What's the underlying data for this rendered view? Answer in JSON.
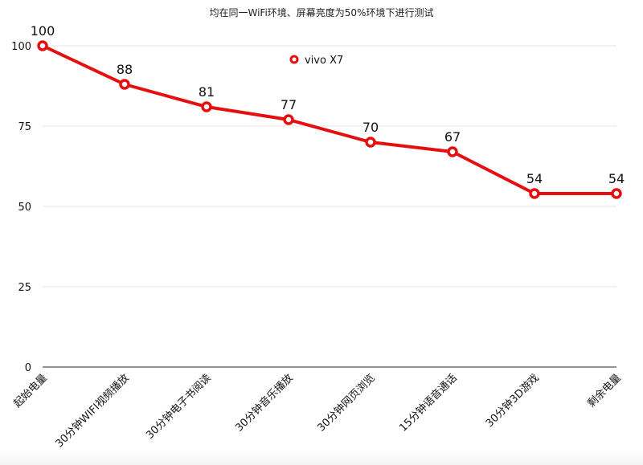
{
  "chart_data": {
    "type": "line",
    "title": "均在同一WiFi环境、屏幕亮度为50%环境下进行测试",
    "xlabel": "",
    "ylabel": "",
    "ylim": [
      0,
      100
    ],
    "yticks": [
      0,
      25,
      50,
      75,
      100
    ],
    "grid": true,
    "legend_position": "top-center",
    "categories": [
      "起始电量",
      "30分钟WIFI视频播放",
      "30分钟电子书阅读",
      "30分钟音乐播放",
      "30分钟网页浏览",
      "15分钟语音通话",
      "30分钟3D游戏",
      "剩余电量"
    ],
    "series": [
      {
        "name": "vivo X7",
        "color": "#e50f0f",
        "values": [
          100,
          88,
          81,
          77,
          70,
          67,
          54,
          54
        ]
      }
    ]
  }
}
